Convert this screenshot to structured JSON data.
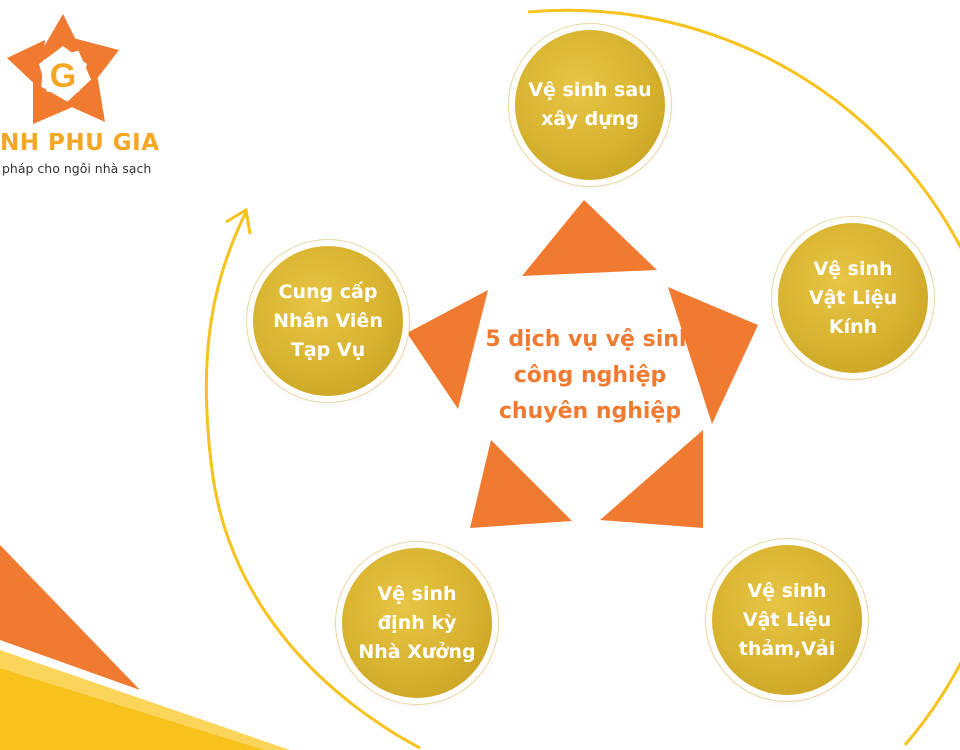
{
  "brand": {
    "name": "NH PHU GIA",
    "tagline": "pháp cho ngôi nhà sạch",
    "logo_letter": "G",
    "colors": {
      "primary": "#f07a30",
      "accent": "#f5a623"
    }
  },
  "center": {
    "title": "5 dịch vụ vệ sinh\ncông nghiệp\nchuyên nghiệp",
    "shape": "pentagon-star"
  },
  "services": [
    {
      "label": "Vệ sinh sau\nxây dựng"
    },
    {
      "label": "Vệ sinh\nVật Liệu\nKính"
    },
    {
      "label": "Vệ sinh\nVật Liệu\nthảm,Vải"
    },
    {
      "label": "Vệ sinh\nđịnh kỳ\nNhà Xưởng"
    },
    {
      "label": "Cung cấp\nNhân Viên\nTạp Vụ"
    }
  ],
  "colors": {
    "circle_gold": "#d7b22e",
    "ring_yellow": "#f7c21c",
    "triangle_orange": "#f07a30"
  }
}
